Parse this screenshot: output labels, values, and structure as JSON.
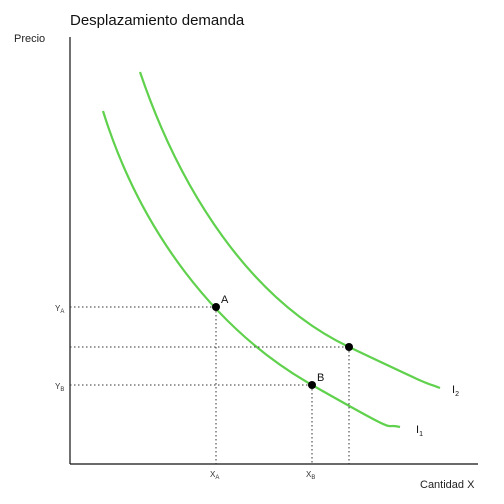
{
  "title": "Desplazamiento demanda",
  "axes": {
    "y_label": "Precio",
    "x_label": "Cantidad X"
  },
  "ticks": {
    "y_a": {
      "main": "Y",
      "sub": "A"
    },
    "y_b": {
      "main": "Y",
      "sub": "B"
    },
    "x_a": {
      "main": "X",
      "sub": "A"
    },
    "x_b": {
      "main": "X",
      "sub": "B"
    }
  },
  "points": {
    "a": "A",
    "b": "B"
  },
  "curves": {
    "i1": {
      "main": "I",
      "sub": "1"
    },
    "i2": {
      "main": "I",
      "sub": "2"
    }
  },
  "colors": {
    "curve": "#5fd14c",
    "axis": "#111111"
  }
}
